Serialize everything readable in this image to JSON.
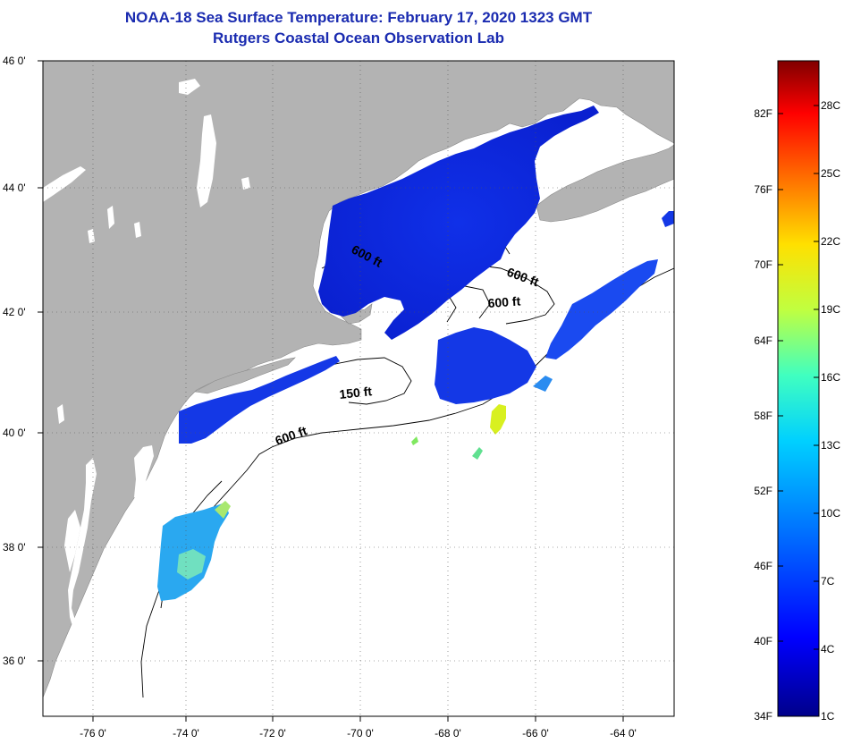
{
  "title": {
    "line1": "NOAA-18 Sea Surface Temperature:  February 17, 2020 1323 GMT",
    "line2": "Rutgers Coastal Ocean Observation Lab"
  },
  "map": {
    "lat_labels": [
      "46 0'",
      "44 0'",
      "42 0'",
      "40 0'",
      "38 0'",
      "36 0'"
    ],
    "lon_labels": [
      "-76 0'",
      "-74 0'",
      "-72 0'",
      "-70 0'",
      "-68 0'",
      "-66 0'",
      "-64 0'"
    ],
    "contour_labels": [
      "600 ft",
      "600 ft",
      "600 ft",
      "150 ft",
      "600 ft"
    ],
    "colors": {
      "land": "#b3b3b3",
      "ocean": "#ffffff",
      "grid": "#555555"
    }
  },
  "colorbar": {
    "fahrenheit_labels": [
      "82F",
      "76F",
      "70F",
      "64F",
      "58F",
      "52F",
      "46F",
      "40F",
      "34F"
    ],
    "celsius_labels": [
      "28C",
      "25C",
      "22C",
      "19C",
      "16C",
      "13C",
      "10C",
      "7C",
      "4C",
      "1C"
    ],
    "colors": [
      "#00008a",
      "#0000ff",
      "#0070ff",
      "#00d0ff",
      "#40ffc0",
      "#c0ff40",
      "#ffe000",
      "#ff7000",
      "#ff0000",
      "#800000"
    ]
  }
}
